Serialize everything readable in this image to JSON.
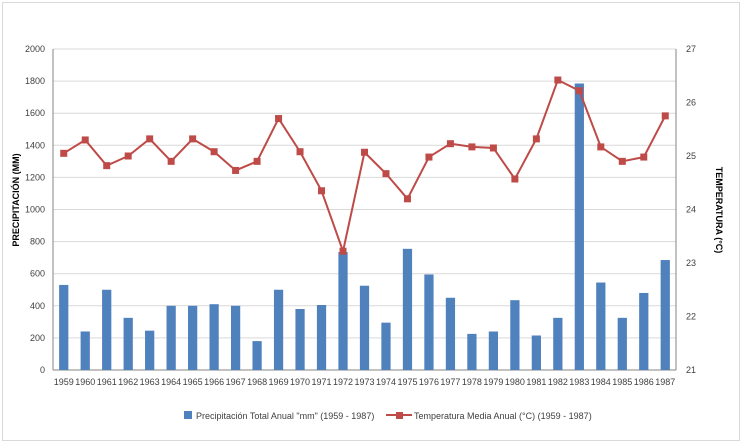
{
  "chart_data": {
    "type": "bar+line",
    "title": "",
    "categories": [
      "1959",
      "1960",
      "1961",
      "1962",
      "1963",
      "1964",
      "1965",
      "1966",
      "1967",
      "1968",
      "1969",
      "1970",
      "1971",
      "1972",
      "1973",
      "1974",
      "1975",
      "1976",
      "1977",
      "1978",
      "1979",
      "1980",
      "1981",
      "1982",
      "1983",
      "1984",
      "1985",
      "1986",
      "1987"
    ],
    "series": [
      {
        "name": "Precipitación Total Anual \"mm\" (1959 - 1987)",
        "type": "bar",
        "axis": "left",
        "color": "#4f81bd",
        "values": [
          530,
          240,
          500,
          325,
          245,
          400,
          400,
          410,
          400,
          180,
          500,
          380,
          405,
          735,
          525,
          295,
          755,
          595,
          450,
          225,
          240,
          435,
          215,
          325,
          1785,
          545,
          325,
          480,
          685
        ]
      },
      {
        "name": "Temperatura Media Anual (°C) (1959 - 1987)",
        "type": "line",
        "axis": "right",
        "color": "#be4b48",
        "marker": "square",
        "values": [
          25.05,
          25.3,
          24.82,
          25.0,
          25.32,
          24.9,
          25.32,
          25.08,
          24.73,
          24.9,
          25.7,
          25.08,
          24.35,
          23.22,
          25.07,
          24.67,
          24.2,
          24.98,
          25.23,
          25.17,
          25.15,
          24.57,
          25.32,
          26.42,
          26.22,
          25.17,
          24.9,
          24.98,
          25.75
        ]
      }
    ],
    "ylabel": "PRECIPITACIÓN (MM)",
    "y2label": "TEMPERATURA (°C)",
    "ylim": [
      0,
      2000
    ],
    "y2lim": [
      21,
      27
    ],
    "yticks": [
      "0",
      "200",
      "400",
      "600",
      "800",
      "1000",
      "1200",
      "1400",
      "1600",
      "1800",
      "2000"
    ],
    "y2ticks": [
      "21",
      "22",
      "23",
      "24",
      "25",
      "26",
      "27"
    ],
    "grid": true,
    "legend_position": "bottom"
  }
}
